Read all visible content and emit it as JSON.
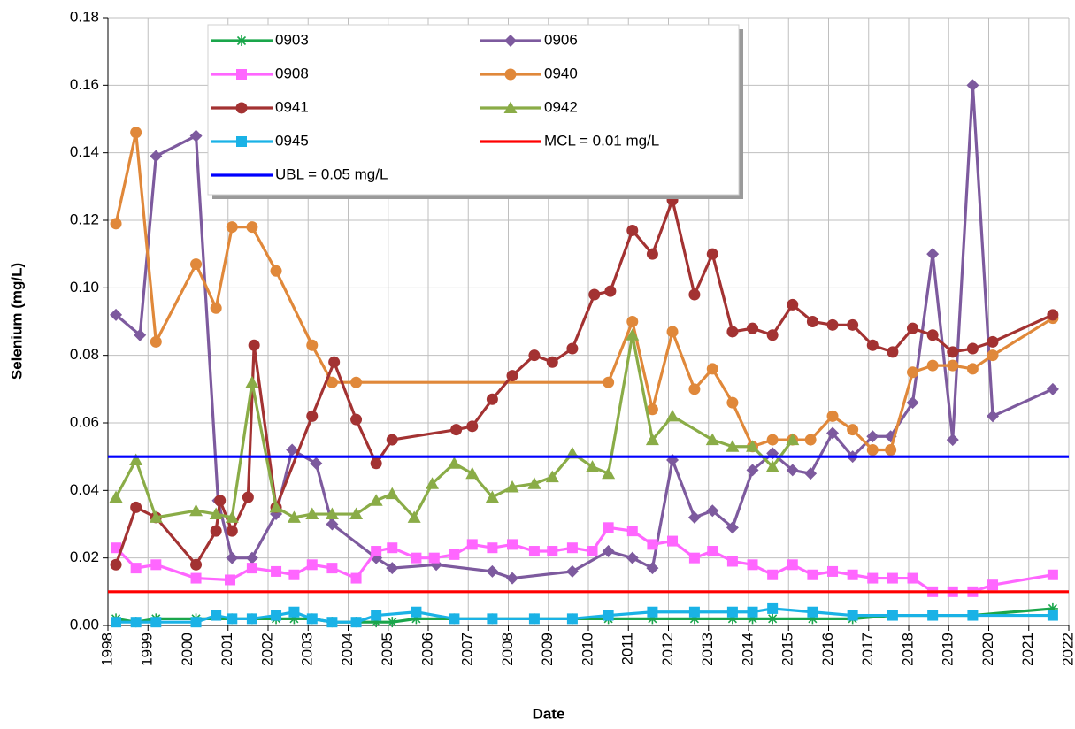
{
  "chart_data": {
    "type": "line",
    "x_label": "Date",
    "y_label": "Selenium (mg/L)",
    "xlim": [
      1998,
      2022
    ],
    "xticks": [
      1998,
      1999,
      2000,
      2001,
      2002,
      2003,
      2004,
      2005,
      2006,
      2007,
      2008,
      2009,
      2010,
      2011,
      2012,
      2013,
      2014,
      2015,
      2016,
      2017,
      2018,
      2019,
      2020,
      2021,
      2022
    ],
    "ylim": [
      0,
      0.18
    ],
    "yticks": [
      {
        "value": 0,
        "label": "0.00"
      },
      0.02,
      0.04,
      0.06,
      0.08,
      {
        "value": 0.1,
        "label": "0.10"
      },
      0.12,
      0.14,
      0.16,
      0.18
    ],
    "grid": true,
    "legend": "upper-center",
    "series": [
      {
        "name": "0903",
        "color": "#1aa64b",
        "marker": "asterisk",
        "x": [
          1998.2,
          1998.7,
          1999.2,
          2000.2,
          2001.1,
          2001.6,
          2002.2,
          2002.65,
          2003.1,
          2003.6,
          2004.2,
          2004.7,
          2005.1,
          2005.7,
          2006.65,
          2007.6,
          2008.65,
          2009.6,
          2010.5,
          2011.6,
          2012.65,
          2013.6,
          2014.1,
          2014.6,
          2015.6,
          2016.6,
          2017.6,
          2018.6,
          2019.6,
          2021.6
        ],
        "values": [
          0.002,
          0.001,
          0.002,
          0.002,
          0.002,
          0.002,
          0.002,
          0.002,
          0.002,
          0.001,
          0.001,
          0.001,
          0.001,
          0.002,
          0.002,
          0.002,
          0.002,
          0.002,
          0.002,
          0.002,
          0.002,
          0.002,
          0.002,
          0.002,
          0.002,
          0.002,
          0.003,
          0.003,
          0.003,
          0.005
        ]
      },
      {
        "name": "0906",
        "color": "#7d5a9e",
        "marker": "diamond",
        "x": [
          1998.2,
          1998.8,
          1999.2,
          2000.2,
          2000.75,
          2001.1,
          2001.6,
          2002.2,
          2002.6,
          2003.2,
          2003.6,
          2004.7,
          2005.1,
          2006.2,
          2007.6,
          2008.1,
          2009.6,
          2010.5,
          2011.1,
          2011.6,
          2012.1,
          2012.65,
          2013.1,
          2013.6,
          2014.1,
          2014.6,
          2015.1,
          2015.55,
          2016.1,
          2016.6,
          2017.1,
          2017.55,
          2018.1,
          2018.6,
          2019.1,
          2019.6,
          2020.1,
          2021.6
        ],
        "values": [
          0.092,
          0.086,
          0.139,
          0.145,
          0.037,
          0.02,
          0.02,
          0.033,
          0.052,
          0.048,
          0.03,
          0.02,
          0.017,
          0.018,
          0.016,
          0.014,
          0.016,
          0.022,
          0.02,
          0.017,
          0.049,
          0.032,
          0.034,
          0.029,
          0.046,
          0.051,
          0.046,
          0.045,
          0.057,
          0.05,
          0.056,
          0.056,
          0.066,
          0.11,
          0.055,
          0.16,
          0.062,
          0.07
        ]
      },
      {
        "name": "0908",
        "color": "#ff66ff",
        "marker": "square",
        "x": [
          1998.2,
          1998.7,
          1999.2,
          2000.2,
          2001.05,
          2001.6,
          2002.2,
          2002.65,
          2003.1,
          2003.6,
          2004.2,
          2004.7,
          2005.1,
          2005.7,
          2006.15,
          2006.65,
          2007.1,
          2007.6,
          2008.1,
          2008.65,
          2009.1,
          2009.6,
          2010.1,
          2010.5,
          2011.1,
          2011.6,
          2012.1,
          2012.65,
          2013.1,
          2013.6,
          2014.1,
          2014.6,
          2015.1,
          2015.6,
          2016.1,
          2016.6,
          2017.1,
          2017.6,
          2018.1,
          2018.6,
          2019.1,
          2019.6,
          2020.1,
          2021.6
        ],
        "values": [
          0.023,
          0.017,
          0.018,
          0.014,
          0.0135,
          0.017,
          0.016,
          0.015,
          0.018,
          0.017,
          0.014,
          0.022,
          0.023,
          0.02,
          0.02,
          0.021,
          0.024,
          0.023,
          0.024,
          0.022,
          0.022,
          0.023,
          0.022,
          0.029,
          0.028,
          0.024,
          0.025,
          0.02,
          0.022,
          0.019,
          0.018,
          0.015,
          0.018,
          0.015,
          0.016,
          0.015,
          0.014,
          0.014,
          0.014,
          0.01,
          0.01,
          0.01,
          0.012,
          0.015
        ]
      },
      {
        "name": "0940",
        "color": "#e0883a",
        "marker": "circle",
        "x": [
          1998.2,
          1998.7,
          1999.2,
          2000.2,
          2000.7,
          2001.1,
          2001.6,
          2002.2,
          2003.1,
          2003.6,
          2004.2,
          2010.5,
          2011.1,
          2011.6,
          2012.1,
          2012.65,
          2013.1,
          2013.6,
          2014.1,
          2014.6,
          2015.1,
          2015.55,
          2016.1,
          2016.6,
          2017.1,
          2017.55,
          2018.1,
          2018.6,
          2019.1,
          2019.6,
          2020.1,
          2021.6
        ],
        "values": [
          0.119,
          0.146,
          0.084,
          0.107,
          0.094,
          0.118,
          0.118,
          0.105,
          0.083,
          0.072,
          0.072,
          0.072,
          0.09,
          0.064,
          0.087,
          0.07,
          0.076,
          0.066,
          0.053,
          0.055,
          0.055,
          0.055,
          0.062,
          0.058,
          0.052,
          0.052,
          0.075,
          0.077,
          0.077,
          0.076,
          0.08,
          0.091
        ]
      },
      {
        "name": "0941",
        "color": "#a33232",
        "marker": "circle",
        "x": [
          1998.2,
          1998.7,
          1999.2,
          2000.2,
          2000.7,
          2000.8,
          2001.1,
          2001.5,
          2001.65,
          2002.2,
          2003.1,
          2003.65,
          2004.2,
          2004.7,
          2005.1,
          2006.7,
          2007.1,
          2007.6,
          2008.1,
          2008.65,
          2009.1,
          2009.6,
          2010.15,
          2010.55,
          2011.1,
          2011.6,
          2012.1,
          2012.65,
          2013.1,
          2013.6,
          2014.1,
          2014.6,
          2015.1,
          2015.6,
          2016.1,
          2016.6,
          2017.1,
          2017.6,
          2018.1,
          2018.6,
          2019.1,
          2019.6,
          2020.1,
          2021.6
        ],
        "values": [
          0.018,
          0.035,
          0.032,
          0.018,
          0.028,
          0.037,
          0.028,
          0.038,
          0.083,
          0.035,
          0.062,
          0.078,
          0.061,
          0.048,
          0.055,
          0.058,
          0.059,
          0.067,
          0.074,
          0.08,
          0.078,
          0.082,
          0.098,
          0.099,
          0.117,
          0.11,
          0.126,
          0.098,
          0.11,
          0.087,
          0.088,
          0.086,
          0.095,
          0.09,
          0.089,
          0.089,
          0.083,
          0.081,
          0.088,
          0.086,
          0.081,
          0.082,
          0.084,
          0.092
        ]
      },
      {
        "name": "0942",
        "color": "#8aac47",
        "marker": "triangle",
        "x": [
          1998.2,
          1998.7,
          1999.2,
          2000.2,
          2000.7,
          2001.1,
          2001.6,
          2002.2,
          2002.65,
          2003.1,
          2003.6,
          2004.2,
          2004.7,
          2005.1,
          2005.65,
          2006.1,
          2006.65,
          2007.1,
          2007.6,
          2008.1,
          2008.65,
          2009.1,
          2009.6,
          2010.1,
          2010.5,
          2011.1,
          2011.6,
          2012.1,
          2013.1,
          2013.6,
          2014.1,
          2014.6,
          2015.1
        ],
        "values": [
          0.038,
          0.049,
          0.032,
          0.034,
          0.033,
          0.032,
          0.072,
          0.035,
          0.032,
          0.033,
          0.033,
          0.033,
          0.037,
          0.039,
          0.032,
          0.042,
          0.048,
          0.045,
          0.038,
          0.041,
          0.042,
          0.044,
          0.051,
          0.047,
          0.045,
          0.086,
          0.055,
          0.062,
          0.055,
          0.053,
          0.053,
          0.047,
          0.055
        ]
      },
      {
        "name": "0945",
        "color": "#1ab2e6",
        "marker": "square",
        "x": [
          1998.2,
          1998.7,
          1999.2,
          2000.2,
          2000.7,
          2001.1,
          2001.6,
          2002.2,
          2002.65,
          2003.1,
          2003.6,
          2004.2,
          2004.7,
          2005.7,
          2006.65,
          2007.6,
          2008.65,
          2009.6,
          2010.5,
          2011.6,
          2012.65,
          2013.6,
          2014.1,
          2014.6,
          2015.6,
          2016.6,
          2017.6,
          2018.6,
          2019.6,
          2021.6
        ],
        "values": [
          0.001,
          0.001,
          0.001,
          0.001,
          0.003,
          0.002,
          0.002,
          0.003,
          0.004,
          0.002,
          0.001,
          0.001,
          0.003,
          0.004,
          0.002,
          0.002,
          0.002,
          0.002,
          0.003,
          0.004,
          0.004,
          0.004,
          0.004,
          0.005,
          0.004,
          0.003,
          0.003,
          0.003,
          0.003,
          0.003
        ]
      },
      {
        "name": "MCL = 0.01 mg/L",
        "color": "#ff0000",
        "marker": "none",
        "x": [
          1998,
          2022
        ],
        "values": [
          0.01,
          0.01
        ]
      },
      {
        "name": "UBL = 0.05 mg/L",
        "color": "#0000ff",
        "marker": "none",
        "x": [
          1998,
          2022
        ],
        "values": [
          0.05,
          0.05
        ]
      }
    ]
  }
}
